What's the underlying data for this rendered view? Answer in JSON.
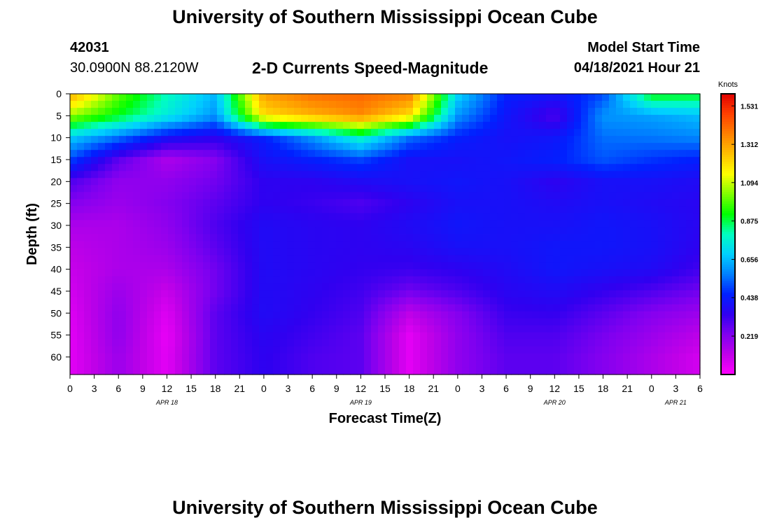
{
  "header": {
    "title": "University of Southern Mississippi Ocean Cube",
    "station_id": "42031",
    "location": "30.0900N  88.2120W",
    "subtitle": "2-D Currents Speed-Magnitude",
    "model_start_label": "Model Start Time",
    "model_start_value": "04/18/2021 Hour 21"
  },
  "footer": {
    "title": "University of Southern Mississippi Ocean Cube"
  },
  "chart_data": {
    "type": "heatmap",
    "title": "2-D Currents Speed-Magnitude",
    "xlabel": "Forecast Time(Z)",
    "ylabel": "Depth (ft)",
    "x_tick_labels": [
      "0",
      "3",
      "6",
      "9",
      "12",
      "15",
      "18",
      "21",
      "0",
      "3",
      "6",
      "9",
      "12",
      "15",
      "18",
      "21",
      "0",
      "3",
      "6",
      "9",
      "12",
      "15",
      "18",
      "21",
      "0",
      "3",
      "6"
    ],
    "x_date_labels": [
      {
        "label": "APR 18",
        "tick_index": 4
      },
      {
        "label": "APR 19",
        "tick_index": 12
      },
      {
        "label": "APR 20",
        "tick_index": 20
      },
      {
        "label": "APR 21",
        "tick_index": 25
      }
    ],
    "x_range_hours": [
      0,
      78
    ],
    "y_tick_labels": [
      "0",
      "5",
      "10",
      "15",
      "20",
      "25",
      "30",
      "35",
      "40",
      "45",
      "50",
      "55",
      "60"
    ],
    "y_range": [
      0,
      64
    ],
    "y_inverted": true,
    "colorbar": {
      "title": "Knots",
      "tick_labels": [
        "1.531",
        "1.312",
        "1.094",
        "0.875",
        "0.656",
        "0.438",
        "0.219"
      ],
      "range": [
        0,
        1.6
      ],
      "colors": [
        "#ff00ff",
        "#c000e8",
        "#8000f0",
        "#3000f0",
        "#0020ff",
        "#0080ff",
        "#00d0ff",
        "#00ffc0",
        "#00ff00",
        "#80ff00",
        "#ffff00",
        "#ffc000",
        "#ff8000",
        "#ff4000",
        "#e00000"
      ]
    },
    "description_samples": {
      "grid": "speed in knots; rows are depths 0,5,10,...,60 ft; columns are forecast hours 0,6,...,78",
      "depths": [
        0,
        5,
        10,
        15,
        20,
        25,
        30,
        35,
        40,
        45,
        50,
        55,
        60
      ],
      "hours": [
        0,
        6,
        12,
        18,
        24,
        30,
        36,
        42,
        48,
        54,
        60,
        66,
        72,
        78
      ],
      "values": [
        [
          1.3,
          1.0,
          0.8,
          0.65,
          1.32,
          1.4,
          1.42,
          1.38,
          0.7,
          0.45,
          0.42,
          0.5,
          0.92,
          0.9
        ],
        [
          1.05,
          0.9,
          0.75,
          0.6,
          1.2,
          1.28,
          1.35,
          1.2,
          0.6,
          0.42,
          0.3,
          0.6,
          0.62,
          0.66
        ],
        [
          0.68,
          0.55,
          0.4,
          0.35,
          0.45,
          0.6,
          0.78,
          0.55,
          0.45,
          0.4,
          0.42,
          0.55,
          0.56,
          0.58
        ],
        [
          0.5,
          0.28,
          0.15,
          0.22,
          0.4,
          0.45,
          0.5,
          0.4,
          0.4,
          0.42,
          0.45,
          0.52,
          0.48,
          0.45
        ],
        [
          0.3,
          0.2,
          0.2,
          0.25,
          0.35,
          0.35,
          0.38,
          0.4,
          0.42,
          0.4,
          0.35,
          0.4,
          0.4,
          0.38
        ],
        [
          0.22,
          0.18,
          0.22,
          0.28,
          0.35,
          0.33,
          0.3,
          0.35,
          0.4,
          0.4,
          0.38,
          0.4,
          0.38,
          0.36
        ],
        [
          0.15,
          0.15,
          0.2,
          0.3,
          0.38,
          0.36,
          0.35,
          0.38,
          0.42,
          0.4,
          0.4,
          0.42,
          0.4,
          0.36
        ],
        [
          0.12,
          0.15,
          0.18,
          0.28,
          0.38,
          0.36,
          0.35,
          0.36,
          0.4,
          0.4,
          0.42,
          0.42,
          0.4,
          0.35
        ],
        [
          0.1,
          0.15,
          0.15,
          0.25,
          0.38,
          0.36,
          0.34,
          0.33,
          0.35,
          0.38,
          0.42,
          0.4,
          0.38,
          0.32
        ],
        [
          0.08,
          0.18,
          0.1,
          0.25,
          0.38,
          0.35,
          0.32,
          0.25,
          0.3,
          0.36,
          0.38,
          0.34,
          0.3,
          0.25
        ],
        [
          0.06,
          0.2,
          0.06,
          0.28,
          0.38,
          0.34,
          0.3,
          0.12,
          0.22,
          0.33,
          0.34,
          0.28,
          0.22,
          0.18
        ],
        [
          0.05,
          0.2,
          0.04,
          0.28,
          0.36,
          0.32,
          0.28,
          0.05,
          0.2,
          0.3,
          0.3,
          0.24,
          0.18,
          0.12
        ],
        [
          0.05,
          0.18,
          0.05,
          0.28,
          0.35,
          0.3,
          0.28,
          0.05,
          0.2,
          0.28,
          0.28,
          0.22,
          0.15,
          0.08
        ]
      ]
    }
  }
}
